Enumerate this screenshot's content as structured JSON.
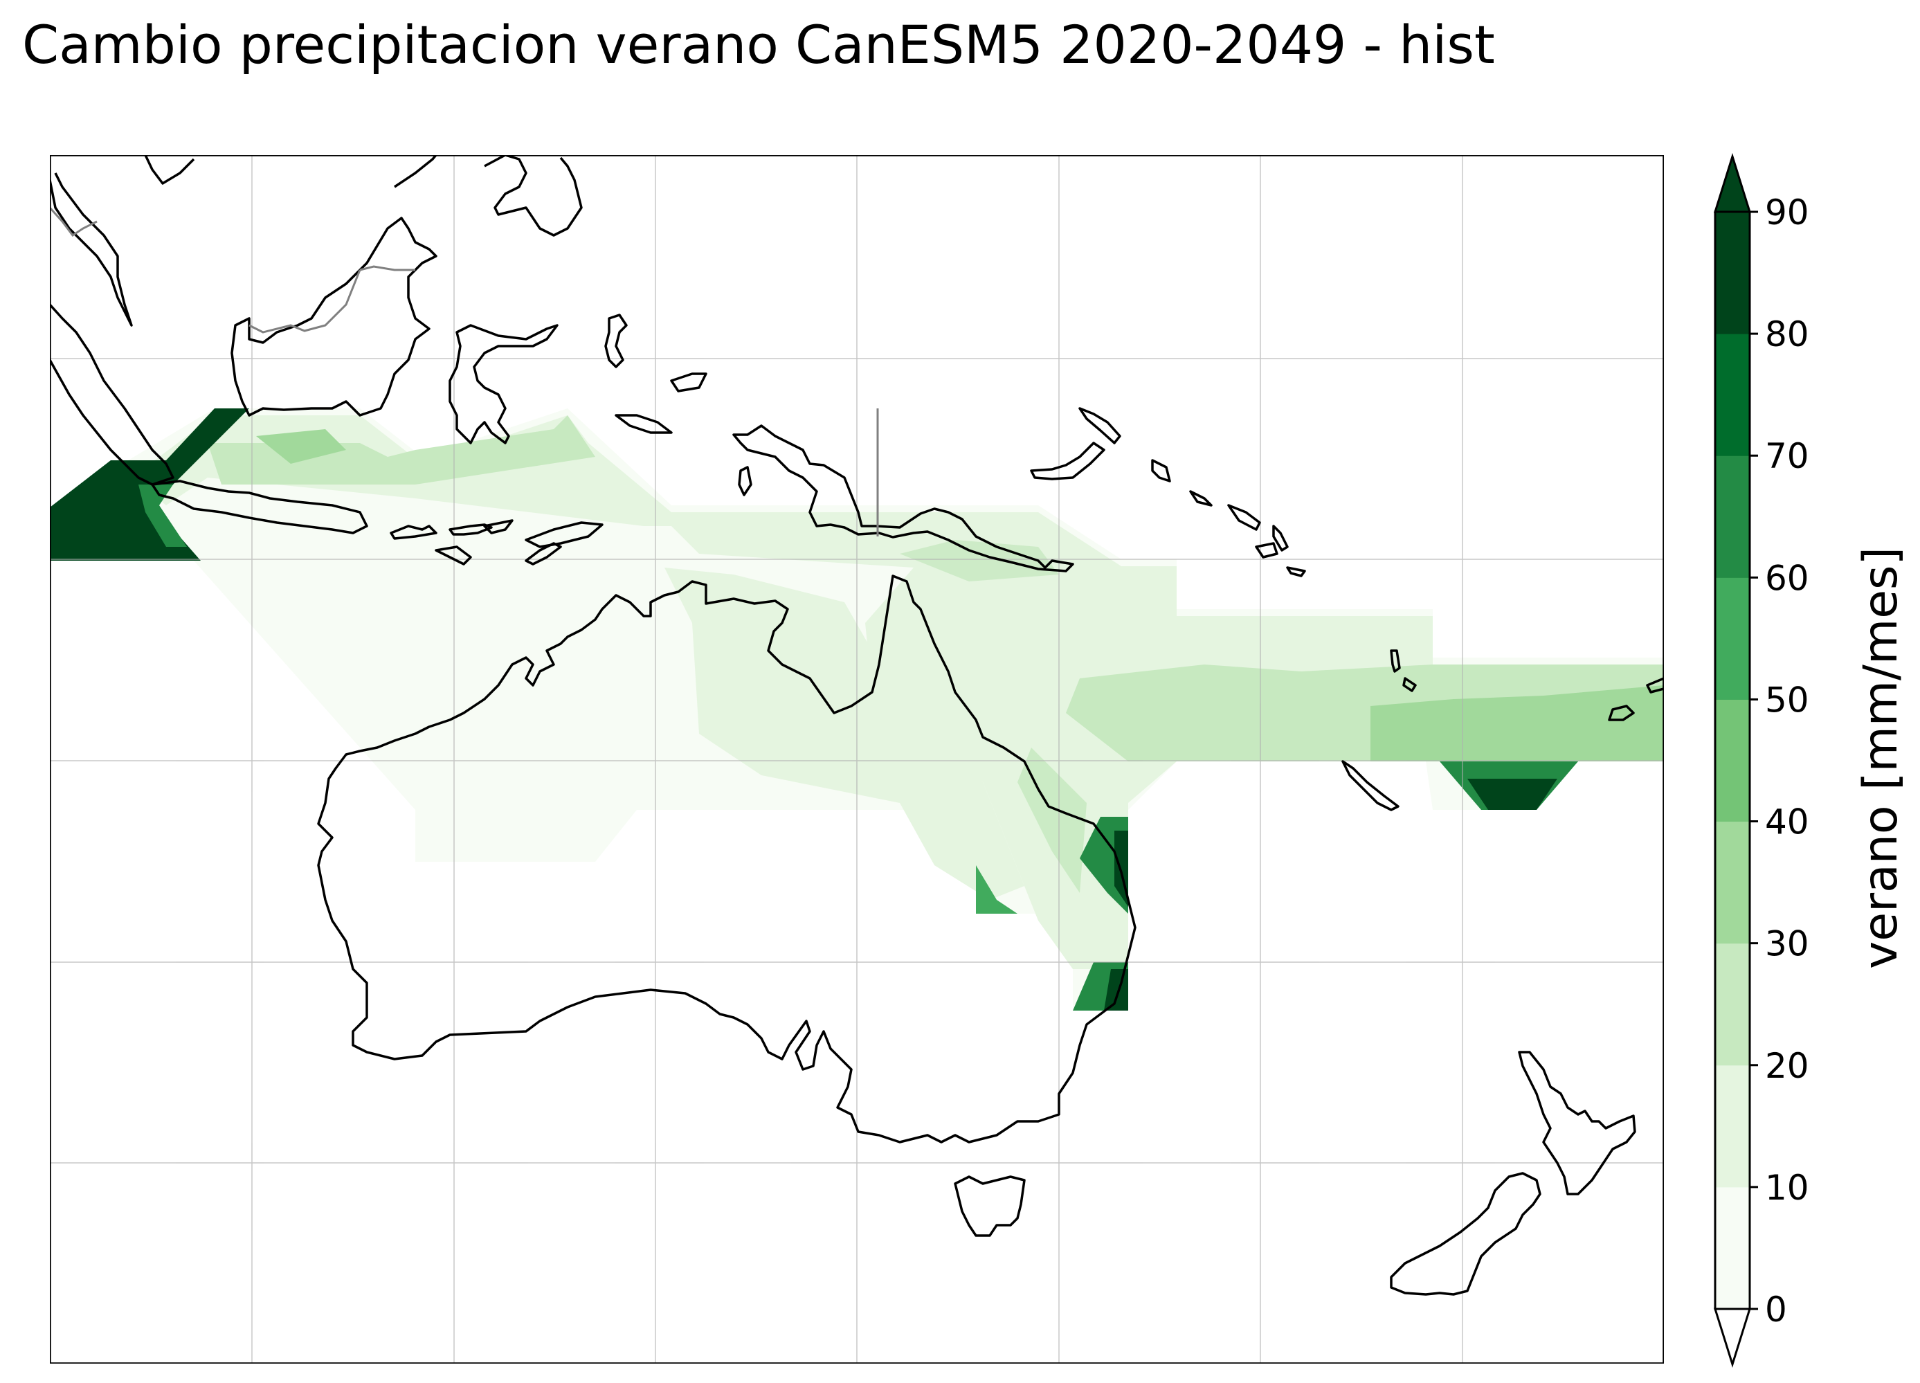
{
  "title": "Cambio precipitacion verano CanESM5 2020-2049 - hist",
  "colorbar": {
    "label": "verano [mm/mes]",
    "ticks": [
      "0",
      "10",
      "20",
      "30",
      "40",
      "50",
      "60",
      "70",
      "80",
      "90"
    ],
    "levels": [
      0,
      10,
      20,
      30,
      40,
      50,
      60,
      70,
      80,
      90
    ],
    "colors": [
      "#f7fcf5",
      "#e5f5e0",
      "#c7e9c0",
      "#a1d99b",
      "#74c476",
      "#41ab5d",
      "#238b45",
      "#006d2c",
      "#00441b"
    ],
    "extend": "both"
  },
  "map": {
    "gridlines": true,
    "coastline_color": "#000000",
    "border_color": "#808080"
  }
}
